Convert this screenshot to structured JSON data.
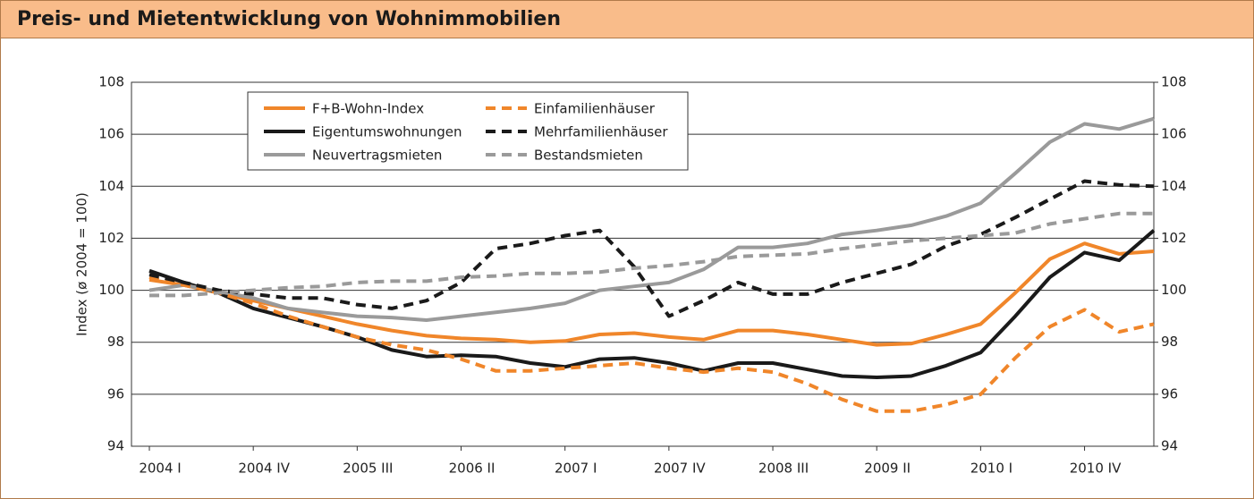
{
  "chart_data": {
    "type": "line",
    "title": "Preis- und Mietentwicklung von Wohnimmobilien",
    "ylabel": "Index (ø 2004 = 100)",
    "categories": [
      "2004 I",
      null,
      null,
      "2004 IV",
      null,
      null,
      "2005 III",
      null,
      null,
      "2006 II",
      null,
      null,
      "2007 I",
      null,
      null,
      "2007 IV",
      null,
      null,
      "2008 III",
      null,
      null,
      "2009 II",
      null,
      null,
      "2010 I",
      null,
      null,
      "2010 IV",
      null,
      null
    ],
    "ylim": [
      94,
      108
    ],
    "yticks": [
      94,
      96,
      98,
      100,
      102,
      104,
      106,
      108
    ],
    "y2lim": [
      94,
      108
    ],
    "y2ticks": [
      94,
      96,
      98,
      100,
      102,
      104,
      106,
      108
    ],
    "grid": true,
    "legend": "upper left",
    "series": [
      {
        "name": "F+B-Wohn-Index",
        "color": "#f0862a",
        "dash": "solid",
        "values": [
          100.4,
          100.2,
          99.9,
          99.6,
          99.3,
          99.0,
          98.7,
          98.45,
          98.25,
          98.15,
          98.1,
          98.0,
          98.05,
          98.3,
          98.35,
          98.2,
          98.1,
          98.45,
          98.45,
          98.3,
          98.1,
          97.9,
          97.95,
          98.3,
          98.7,
          99.9,
          101.2,
          101.8,
          101.4,
          101.5
        ]
      },
      {
        "name": "Eigentumswohnungen",
        "color": "#1a1a1a",
        "dash": "solid",
        "values": [
          100.75,
          100.3,
          99.9,
          99.3,
          98.95,
          98.6,
          98.2,
          97.7,
          97.45,
          97.5,
          97.45,
          97.2,
          97.05,
          97.35,
          97.4,
          97.2,
          96.9,
          97.2,
          97.2,
          96.95,
          96.7,
          96.65,
          96.7,
          97.1,
          97.6,
          99.0,
          100.5,
          101.45,
          101.15,
          102.3
        ]
      },
      {
        "name": "Neuvertragsmieten",
        "color": "#9a9a9a",
        "dash": "solid",
        "values": [
          100.0,
          100.2,
          99.95,
          99.7,
          99.3,
          99.15,
          99.0,
          98.95,
          98.85,
          99.0,
          99.15,
          99.3,
          99.5,
          100.0,
          100.15,
          100.3,
          100.8,
          101.65,
          101.65,
          101.8,
          102.15,
          102.3,
          102.5,
          102.85,
          103.35,
          104.5,
          105.7,
          106.4,
          106.2,
          106.6
        ]
      },
      {
        "name": "Einfamilienhäuser",
        "color": "#f0862a",
        "dash": "dashed",
        "values": [
          100.5,
          100.2,
          99.9,
          99.5,
          99.0,
          98.6,
          98.2,
          97.9,
          97.7,
          97.35,
          96.9,
          96.9,
          97.0,
          97.1,
          97.2,
          97.0,
          96.85,
          97.0,
          96.85,
          96.4,
          95.8,
          95.35,
          95.35,
          95.6,
          96.0,
          97.4,
          98.6,
          99.25,
          98.4,
          98.7
        ]
      },
      {
        "name": "Mehrfamilienhäuser",
        "color": "#1a1a1a",
        "dash": "dashed",
        "values": [
          100.6,
          100.3,
          100.0,
          99.85,
          99.7,
          99.7,
          99.45,
          99.3,
          99.6,
          100.3,
          101.6,
          101.8,
          102.1,
          102.3,
          100.9,
          99.0,
          99.6,
          100.3,
          99.85,
          99.85,
          100.3,
          100.65,
          101.0,
          101.7,
          102.15,
          102.8,
          103.5,
          104.2,
          104.05,
          104.0
        ]
      },
      {
        "name": "Bestandsmieten",
        "color": "#9a9a9a",
        "dash": "dashed",
        "values": [
          99.8,
          99.8,
          99.9,
          100.0,
          100.1,
          100.15,
          100.3,
          100.35,
          100.35,
          100.5,
          100.55,
          100.65,
          100.65,
          100.7,
          100.85,
          100.95,
          101.1,
          101.3,
          101.35,
          101.4,
          101.6,
          101.75,
          101.9,
          102.0,
          102.1,
          102.2,
          102.55,
          102.75,
          102.95,
          102.95
        ]
      }
    ]
  }
}
